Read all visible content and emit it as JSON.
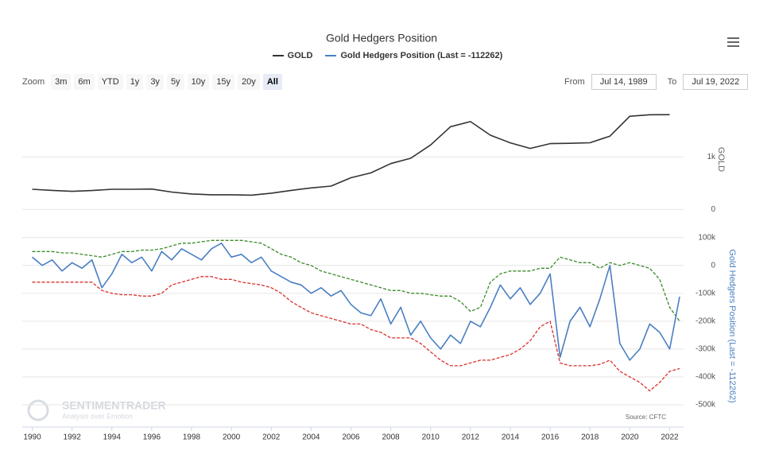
{
  "chart_data": [
    {
      "type": "line",
      "title": "Gold Hedgers Position",
      "ylabel": "GOLD",
      "grid": true,
      "x": [
        1990,
        1991,
        1992,
        1993,
        1994,
        1995,
        1996,
        1997,
        1998,
        1999,
        2000,
        2001,
        2002,
        2003,
        2004,
        2005,
        2006,
        2007,
        2008,
        2009,
        2010,
        2011,
        2012,
        2013,
        2014,
        2015,
        2016,
        2017,
        2018,
        2019,
        2020,
        2021,
        2022
      ],
      "xlim": [
        1989.5,
        2022.7
      ],
      "ylim": [
        -100,
        2000
      ],
      "yticks": [
        0,
        {
          "value": 1000,
          "label": "1k"
        }
      ],
      "series": [
        {
          "name": "GOLD",
          "color": "#333333",
          "values": [
            383,
            362,
            344,
            360,
            384,
            384,
            388,
            331,
            294,
            279,
            279,
            271,
            310,
            363,
            409,
            444,
            603,
            695,
            872,
            972,
            1225,
            1572,
            1669,
            1411,
            1266,
            1160,
            1251,
            1257,
            1268,
            1393,
            1770,
            1799,
            1800
          ]
        }
      ]
    },
    {
      "type": "line",
      "ylabel": "Gold Hedgers Position (Last = -112262)",
      "grid": true,
      "x": [
        1990,
        1990.5,
        1991,
        1991.5,
        1992,
        1992.5,
        1993,
        1993.5,
        1994,
        1994.5,
        1995,
        1995.5,
        1996,
        1996.5,
        1997,
        1997.5,
        1998,
        1998.5,
        1999,
        1999.5,
        2000,
        2000.5,
        2001,
        2001.5,
        2002,
        2002.5,
        2003,
        2003.5,
        2004,
        2004.5,
        2005,
        2005.5,
        2006,
        2006.5,
        2007,
        2007.5,
        2008,
        2008.5,
        2009,
        2009.5,
        2010,
        2010.5,
        2011,
        2011.5,
        2012,
        2012.5,
        2013,
        2013.5,
        2014,
        2014.5,
        2015,
        2015.5,
        2016,
        2016.5,
        2017,
        2017.5,
        2018,
        2018.5,
        2019,
        2019.5,
        2020,
        2020.5,
        2021,
        2021.5,
        2022,
        2022.5
      ],
      "xlim": [
        1989.5,
        2022.7
      ],
      "xticks": [
        1990,
        1992,
        1994,
        1996,
        1998,
        2000,
        2002,
        2004,
        2006,
        2008,
        2010,
        2012,
        2014,
        2016,
        2018,
        2020,
        2022
      ],
      "ylim": [
        -560000,
        125000
      ],
      "yticks": [
        {
          "value": 100000,
          "label": "100k"
        },
        0,
        {
          "value": -100000,
          "label": "-100k"
        },
        {
          "value": -200000,
          "label": "-200k"
        },
        {
          "value": -300000,
          "label": "-300k"
        },
        {
          "value": -400000,
          "label": "-400k"
        },
        {
          "value": -500000,
          "label": "-500k"
        }
      ],
      "series": [
        {
          "color": "#3a8a2a",
          "dash": true,
          "values": [
            50000,
            50000,
            50000,
            45000,
            45000,
            40000,
            35000,
            30000,
            40000,
            50000,
            50000,
            55000,
            55000,
            60000,
            70000,
            80000,
            80000,
            85000,
            90000,
            90000,
            90000,
            90000,
            85000,
            80000,
            60000,
            40000,
            30000,
            10000,
            0,
            -20000,
            -30000,
            -40000,
            -50000,
            -60000,
            -70000,
            -80000,
            -90000,
            -90000,
            -100000,
            -100000,
            -105000,
            -110000,
            -110000,
            -130000,
            -165000,
            -150000,
            -60000,
            -30000,
            -20000,
            -20000,
            -20000,
            -10000,
            -10000,
            30000,
            20000,
            10000,
            10000,
            -10000,
            10000,
            0,
            10000,
            0,
            -10000,
            -50000,
            -150000,
            -200000
          ]
        },
        {
          "color": "#d9302a",
          "dash": true,
          "values": [
            -60000,
            -60000,
            -60000,
            -60000,
            -60000,
            -60000,
            -60000,
            -90000,
            -100000,
            -105000,
            -105000,
            -110000,
            -110000,
            -100000,
            -70000,
            -60000,
            -50000,
            -40000,
            -40000,
            -50000,
            -50000,
            -60000,
            -65000,
            -70000,
            -80000,
            -100000,
            -130000,
            -150000,
            -170000,
            -180000,
            -190000,
            -200000,
            -210000,
            -210000,
            -230000,
            -240000,
            -260000,
            -260000,
            -260000,
            -280000,
            -310000,
            -340000,
            -360000,
            -360000,
            -350000,
            -340000,
            -340000,
            -330000,
            -320000,
            -300000,
            -270000,
            -220000,
            -200000,
            -350000,
            -360000,
            -360000,
            -360000,
            -355000,
            -340000,
            -380000,
            -400000,
            -420000,
            -450000,
            -420000,
            -380000,
            -370000
          ]
        },
        {
          "name": "Gold Hedgers Position (Last = -112262)",
          "color": "#4a7fc1",
          "values": [
            30000,
            0,
            20000,
            -20000,
            10000,
            -10000,
            20000,
            -80000,
            -30000,
            40000,
            10000,
            30000,
            -20000,
            50000,
            20000,
            60000,
            40000,
            20000,
            60000,
            80000,
            30000,
            40000,
            10000,
            30000,
            -20000,
            -40000,
            -60000,
            -70000,
            -100000,
            -80000,
            -110000,
            -90000,
            -140000,
            -170000,
            -180000,
            -120000,
            -210000,
            -150000,
            -250000,
            -200000,
            -260000,
            -300000,
            -250000,
            -280000,
            -200000,
            -220000,
            -150000,
            -70000,
            -120000,
            -80000,
            -140000,
            -100000,
            -30000,
            -330000,
            -200000,
            -150000,
            -220000,
            -120000,
            0,
            -280000,
            -340000,
            -300000,
            -210000,
            -240000,
            -300000,
            -112262
          ]
        }
      ]
    }
  ],
  "controls": {
    "zoom_label": "Zoom",
    "buttons": [
      "3m",
      "6m",
      "YTD",
      "1y",
      "3y",
      "5y",
      "10y",
      "15y",
      "20y",
      "All"
    ],
    "active_button": 9,
    "from_label": "From",
    "from": "Jul 14, 1989",
    "to_label": "To",
    "to": "Jul 19, 2022"
  },
  "source": "Source: CFTC",
  "watermark": {
    "brand": "SENTIMENTRADER",
    "tagline": "Analysis over Emotion"
  }
}
